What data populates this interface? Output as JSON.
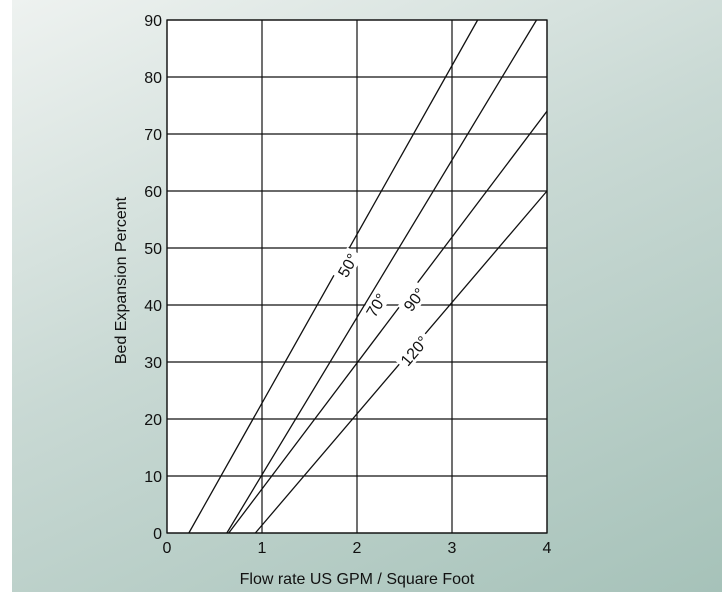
{
  "chart_data": {
    "type": "line",
    "title": "",
    "xlabel": "Flow rate US GPM / Square Foot",
    "ylabel": "Bed Expansion Percent",
    "xlim": [
      0,
      4
    ],
    "ylim": [
      0,
      90
    ],
    "x_ticks": [
      "0",
      "1",
      "2",
      "3",
      "4"
    ],
    "y_ticks": [
      "0",
      "10",
      "20",
      "30",
      "40",
      "50",
      "60",
      "70",
      "80",
      "90"
    ],
    "grid": true,
    "legend": "none",
    "series": [
      {
        "label": "50°",
        "x": [
          0.23,
          3.27
        ],
        "y": [
          0,
          90
        ],
        "label_at": [
          1.9,
          47
        ]
      },
      {
        "label": "70°",
        "x": [
          0.63,
          3.89
        ],
        "y": [
          0,
          90
        ],
        "label_at": [
          2.2,
          40
        ]
      },
      {
        "label": "90°",
        "x": [
          0.65,
          4.0
        ],
        "y": [
          0,
          74
        ],
        "label_at": [
          2.6,
          41
        ]
      },
      {
        "label": "120°",
        "x": [
          0.93,
          4.0
        ],
        "y": [
          0,
          60
        ],
        "label_at": [
          2.6,
          32
        ]
      }
    ]
  }
}
